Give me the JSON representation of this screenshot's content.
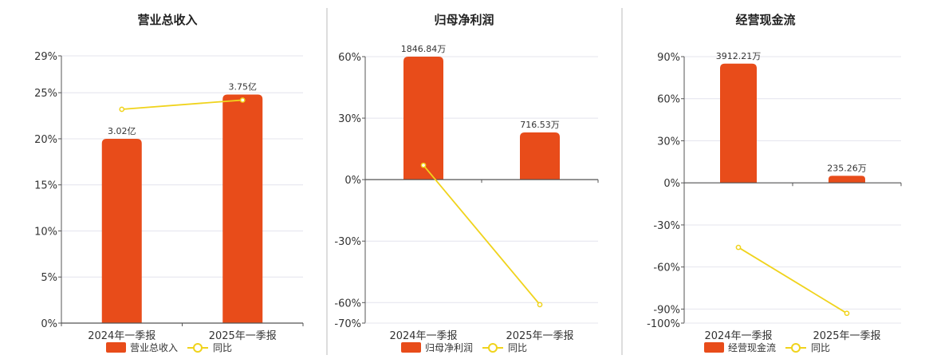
{
  "colors": {
    "bar": "#E84C1A",
    "line": "#F0D31C",
    "grid": "#E4E4EE",
    "axis": "#555555",
    "divider": "#BBBBBB"
  },
  "chart_data": [
    {
      "type": "bar",
      "title": "营业总收入",
      "categories": [
        "2024年一季报",
        "2025年一季报"
      ],
      "series": [
        {
          "name": "营业总收入",
          "kind": "bar",
          "values": [
            20.0,
            24.8
          ],
          "labels": [
            "3.02亿",
            "3.75亿"
          ]
        },
        {
          "name": "同比",
          "kind": "line",
          "values": [
            23.2,
            24.2
          ]
        }
      ],
      "yticks": [
        0,
        5,
        10,
        15,
        20,
        25,
        29
      ],
      "ytick_labels": [
        "0%",
        "5%",
        "10%",
        "15%",
        "20%",
        "25%",
        "29%"
      ],
      "ylim": [
        0,
        29
      ],
      "grid": true,
      "legend": "bottom"
    },
    {
      "type": "bar",
      "title": "归母净利润",
      "categories": [
        "2024年一季报",
        "2025年一季报"
      ],
      "series": [
        {
          "name": "归母净利润",
          "kind": "bar",
          "values": [
            60,
            23
          ],
          "labels": [
            "1846.84万",
            "716.53万"
          ]
        },
        {
          "name": "同比",
          "kind": "line",
          "values": [
            7,
            -61
          ]
        }
      ],
      "yticks": [
        -70,
        -60,
        -30,
        0,
        30,
        60
      ],
      "ytick_labels": [
        "-70%",
        "-60%",
        "-30%",
        "0%",
        "30%",
        "60%"
      ],
      "ylim": [
        -70,
        60
      ],
      "grid": true,
      "legend": "bottom"
    },
    {
      "type": "bar",
      "title": "经营现金流",
      "categories": [
        "2024年一季报",
        "2025年一季报"
      ],
      "series": [
        {
          "name": "经营现金流",
          "kind": "bar",
          "values": [
            85,
            5
          ],
          "labels": [
            "3912.21万",
            "235.26万"
          ]
        },
        {
          "name": "同比",
          "kind": "line",
          "values": [
            -46,
            -93
          ]
        }
      ],
      "yticks": [
        -100,
        -90,
        -60,
        -30,
        0,
        30,
        60,
        90
      ],
      "ytick_labels": [
        "-100%",
        "-90%",
        "-60%",
        "-30%",
        "0%",
        "30%",
        "60%",
        "90%"
      ],
      "ylim": [
        -100,
        90
      ],
      "grid": true,
      "legend": "bottom"
    }
  ]
}
